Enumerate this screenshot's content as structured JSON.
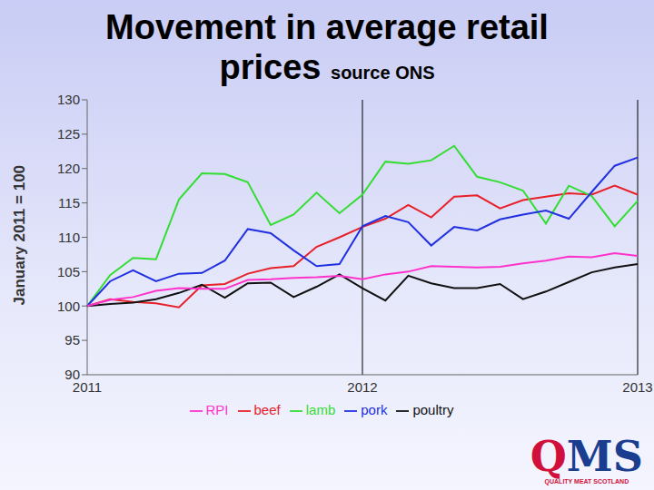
{
  "chart_data": {
    "type": "line",
    "title": "Movement in average retail prices",
    "subtitle": "source ONS",
    "y_label": "January 2011 = 100",
    "categories": [
      "2011",
      null,
      null,
      null,
      null,
      null,
      null,
      null,
      null,
      null,
      null,
      null,
      "2012",
      null,
      null,
      null,
      null,
      null,
      null,
      null,
      null,
      null,
      null,
      null,
      "2013"
    ],
    "series": [
      {
        "name": "beef",
        "color": "#e8202a",
        "values": [
          100,
          101,
          100.6,
          100.4,
          99.8,
          103,
          103.2,
          104.7,
          105.5,
          105.8,
          108.6,
          110,
          111.5,
          112.7,
          114.7,
          112.9,
          115.9,
          116.1,
          114.2,
          115.4,
          115.9,
          116.4,
          116.2,
          117.5,
          116.2
        ]
      },
      {
        "name": "lamb",
        "color": "#33dd33",
        "values": [
          100,
          104.5,
          107,
          106.8,
          115.5,
          119.3,
          119.2,
          118,
          111.8,
          113.3,
          116.5,
          113.5,
          116.2,
          121,
          120.7,
          121.2,
          123.3,
          118.8,
          118,
          116.8,
          112,
          117.5,
          116,
          111.6,
          115.3
        ]
      },
      {
        "name": "pork",
        "color": "#2030e0",
        "values": [
          100,
          103.6,
          105.2,
          103.6,
          104.7,
          104.8,
          106.6,
          111.2,
          110.6,
          108.1,
          105.8,
          106.1,
          111.6,
          113.1,
          112.2,
          108.8,
          111.5,
          111,
          112.6,
          113.3,
          113.9,
          112.7,
          116.6,
          120.4,
          121.6
        ]
      },
      {
        "name": "poultry",
        "color": "#111111",
        "values": [
          100,
          100.3,
          100.5,
          101,
          101.9,
          103.1,
          101.2,
          103.3,
          103.4,
          101.3,
          102.8,
          104.6,
          102.6,
          100.8,
          104.4,
          103.3,
          102.6,
          102.6,
          103.2,
          101,
          102.1,
          103.5,
          104.9,
          105.6,
          106.1
        ]
      },
      {
        "name": "RPI",
        "color": "#ff33cc",
        "values": [
          100,
          100.9,
          101.3,
          102.2,
          102.6,
          102.5,
          102.5,
          103.8,
          103.9,
          104.1,
          104.2,
          104.4,
          103.9,
          104.6,
          105,
          105.8,
          105.7,
          105.6,
          105.7,
          106.2,
          106.6,
          107.2,
          107.1,
          107.7,
          107.3
        ]
      }
    ],
    "ylim": [
      90,
      130
    ],
    "yticks": [
      90,
      95,
      100,
      105,
      110,
      115,
      120,
      125,
      130
    ],
    "grid": false,
    "legend": "bottom"
  },
  "logo": {
    "text": "QMS",
    "caption": "QUALITY MEAT SCOTLAND"
  }
}
